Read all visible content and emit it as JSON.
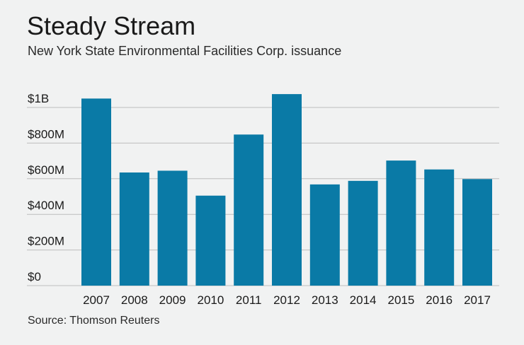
{
  "title": "Steady Stream",
  "subtitle": "New York State Environmental Facilities Corp. issuance",
  "source": "Source: Thomson Reuters",
  "colors": {
    "bar": "#0a7aa6",
    "grid": "#bdbdbd",
    "background": "#f1f2f2"
  },
  "chart_data": {
    "type": "bar",
    "categories": [
      "2007",
      "2008",
      "2009",
      "2010",
      "2011",
      "2012",
      "2013",
      "2014",
      "2015",
      "2016",
      "2017"
    ],
    "values": [
      1050,
      635,
      645,
      505,
      848,
      1075,
      568,
      588,
      702,
      652,
      598
    ],
    "unit": "$M",
    "ylim": [
      0,
      1000
    ],
    "yticks": [
      0,
      200,
      400,
      600,
      800,
      1000
    ],
    "ytick_labels": [
      "$0",
      "$200M",
      "$400M",
      "$600M",
      "$800M",
      "$1B"
    ],
    "grid": true,
    "legend": "none"
  }
}
